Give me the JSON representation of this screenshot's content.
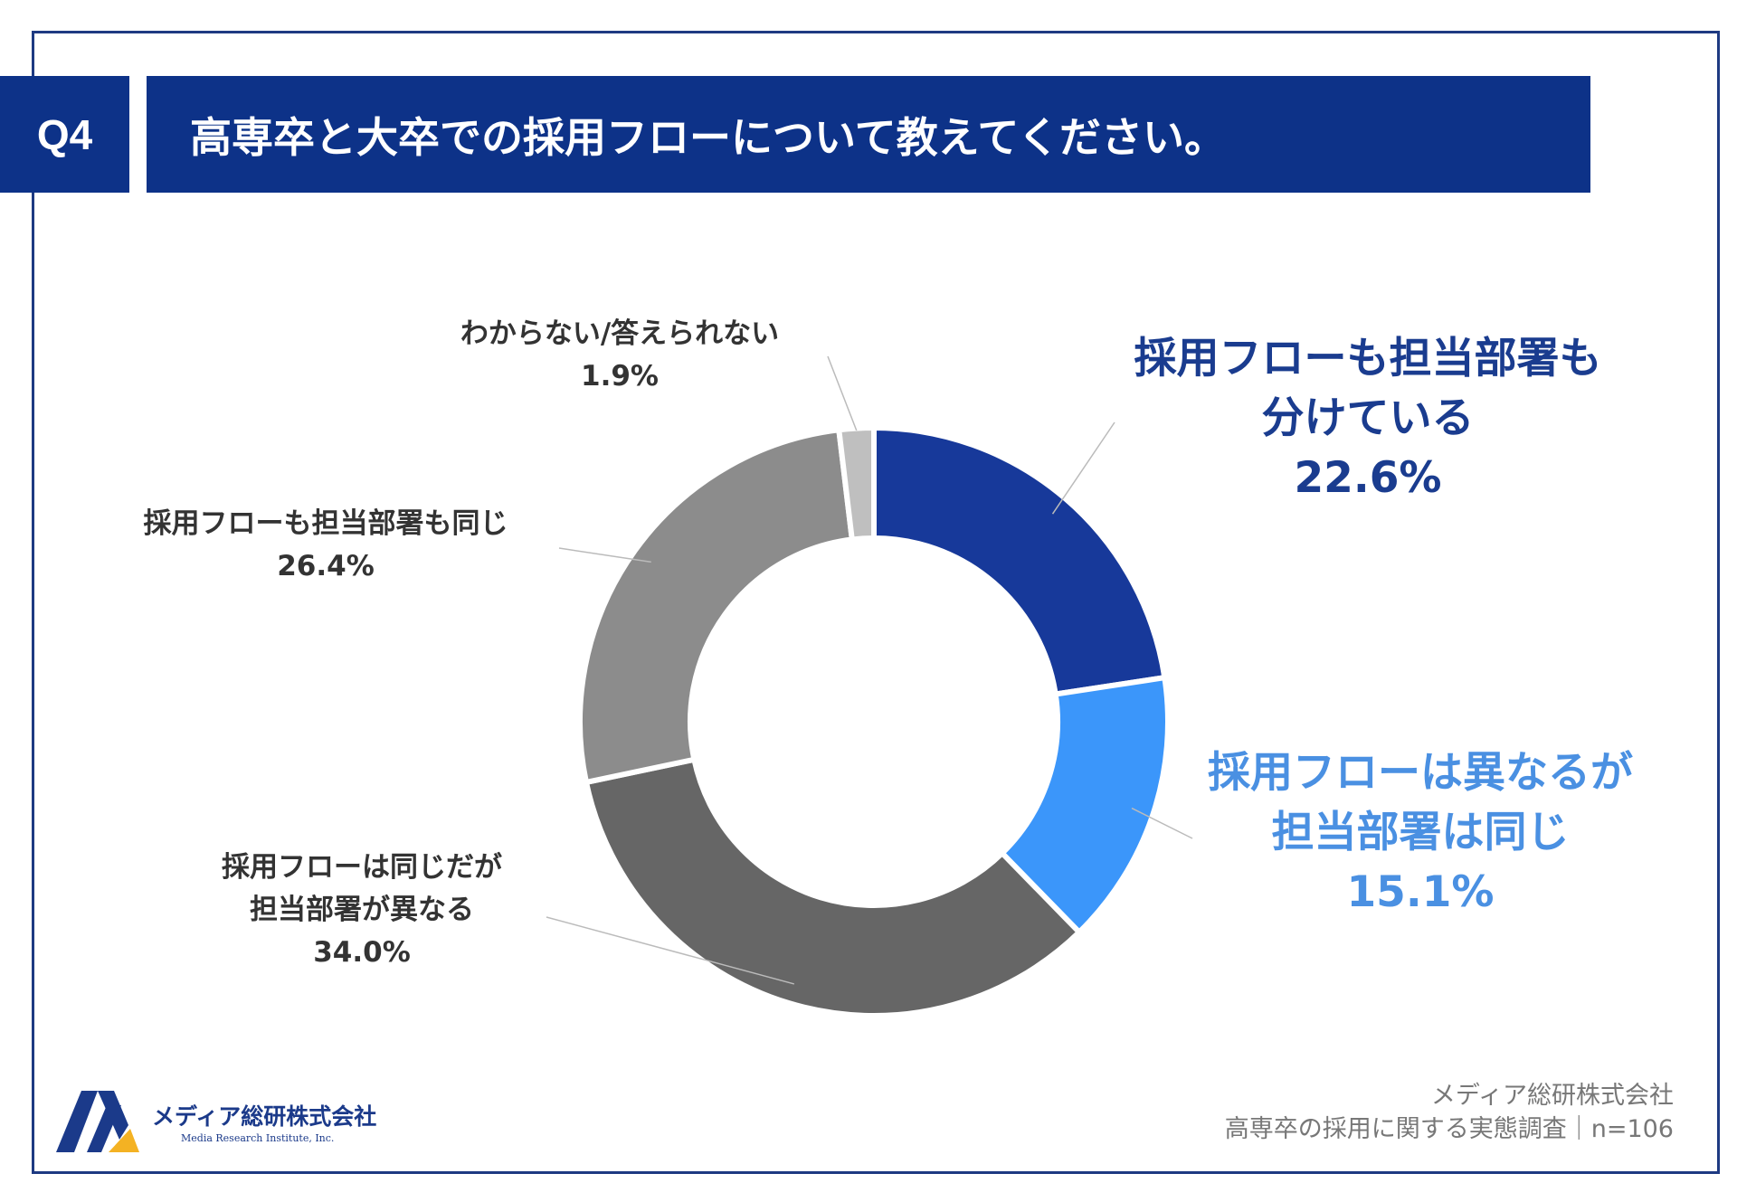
{
  "header": {
    "badge": "Q4",
    "title": "高専卒と大卒での採用フローについて教えてください。"
  },
  "chart_data": {
    "type": "pie",
    "variant": "donut",
    "title": "高専卒と大卒での採用フローについて教えてください。",
    "slices": [
      {
        "label": "採用フローも担当部署も分けている",
        "value": 22.6,
        "color": "#17399a"
      },
      {
        "label": "採用フローは異なるが担当部署は同じ",
        "value": 15.1,
        "color": "#3b96fa"
      },
      {
        "label": "採用フローは同じだが担当部署が異なる",
        "value": 34.0,
        "color": "#666666"
      },
      {
        "label": "採用フローも担当部署も同じ",
        "value": 26.4,
        "color": "#8c8c8c"
      },
      {
        "label": "わからない/答えられない",
        "value": 1.9,
        "color": "#bfbfbf"
      }
    ]
  },
  "labels": {
    "s1": {
      "line1": "採用フローも担当部署も",
      "line2": "分けている",
      "pct": "22.6%"
    },
    "s2": {
      "line1": "採用フローは異なるが",
      "line2": "担当部署は同じ",
      "pct": "15.1%"
    },
    "s3": {
      "line1": "採用フローは同じだが",
      "line2": "担当部署が異なる",
      "pct": "34.0%"
    },
    "s4": {
      "line1": "採用フローも担当部署も同じ",
      "pct": "26.4%"
    },
    "s5": {
      "line1": "わからない/答えられない",
      "pct": "1.9%"
    }
  },
  "logo": {
    "name_jp": "メディア総研株式会社",
    "name_en": "Media Research Institute, Inc."
  },
  "footer": {
    "company": "メディア総研株式会社",
    "survey": "高専卒の採用に関する実態調査｜n=106"
  }
}
